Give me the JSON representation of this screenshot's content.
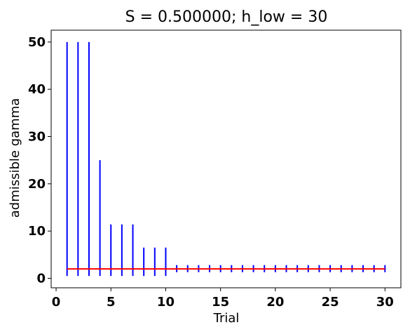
{
  "chart_data": {
    "type": "errorbar",
    "title": "S = 0.500000; h_low = 30",
    "xlabel": "Trial",
    "ylabel": "admissible gamma",
    "xlim": [
      -0.45,
      31.45
    ],
    "ylim": [
      -2.0,
      52.5
    ],
    "xticks": [
      0,
      5,
      10,
      15,
      20,
      25,
      30
    ],
    "yticks": [
      0,
      10,
      20,
      30,
      40,
      50
    ],
    "grid": false,
    "colors": {
      "intervals": "#0000ff",
      "reference_line": "#ff0000",
      "axes": "#000000"
    },
    "x": [
      1,
      2,
      3,
      4,
      5,
      6,
      7,
      8,
      9,
      10,
      11,
      12,
      13,
      14,
      15,
      16,
      17,
      18,
      19,
      20,
      21,
      22,
      23,
      24,
      25,
      26,
      27,
      28,
      29,
      30
    ],
    "lower": [
      0.5,
      0.5,
      0.5,
      0.5,
      0.5,
      0.5,
      0.5,
      0.5,
      0.5,
      0.5,
      1.3,
      1.3,
      1.3,
      1.3,
      1.3,
      1.3,
      1.3,
      1.3,
      1.3,
      1.3,
      1.3,
      1.3,
      1.3,
      1.3,
      1.3,
      1.3,
      1.3,
      1.3,
      1.3,
      1.3
    ],
    "upper": [
      50,
      50,
      50,
      25,
      11.4,
      11.4,
      11.4,
      6.5,
      6.5,
      6.5,
      2.8,
      2.8,
      2.8,
      2.8,
      2.8,
      2.8,
      2.8,
      2.8,
      2.8,
      2.8,
      2.8,
      2.8,
      2.8,
      2.8,
      2.8,
      2.8,
      2.8,
      2.8,
      2.8,
      2.8
    ],
    "reference_line": {
      "y": 2.0,
      "x_range": [
        1,
        30
      ]
    }
  }
}
